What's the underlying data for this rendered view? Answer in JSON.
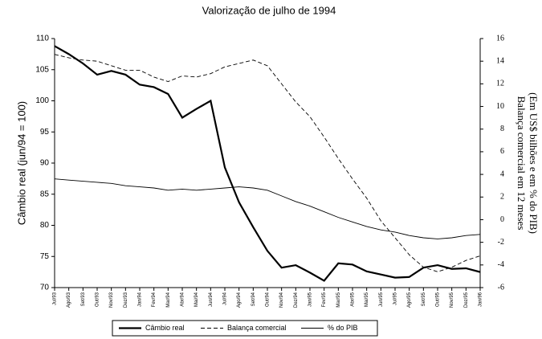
{
  "chart_data": {
    "type": "line",
    "title": "Valorização de julho de 1994",
    "ylabel": "Câmbio real (jun/94 = 100)",
    "y2label": [
      "Balança comercial em 12 meses",
      "(Em US$ bilhões e em % do PIB)"
    ],
    "categories": [
      "Jul/93",
      "Ago/93",
      "Set/93",
      "Out/93",
      "Nov/93",
      "Dez/93",
      "Jan/94",
      "Fev/94",
      "Mar/94",
      "Abr/94",
      "Mai/94",
      "Jun/94",
      "Jul/94",
      "Ago/94",
      "Set/94",
      "Out/94",
      "Nov/94",
      "Dez/94",
      "Jan/95",
      "Fev/95",
      "Mar/95",
      "Abr/95",
      "Mai/95",
      "Jun/95",
      "Jul/95",
      "Ago/95",
      "Set/95",
      "Out/95",
      "Nov/95",
      "Dez/95",
      "Jan/96"
    ],
    "ylim": [
      70,
      110
    ],
    "yticks": [
      70,
      75,
      80,
      85,
      90,
      95,
      100,
      105,
      110
    ],
    "y2lim": [
      -6,
      16
    ],
    "y2ticks": [
      -6,
      -4,
      -2,
      0,
      2,
      4,
      6,
      8,
      10,
      12,
      14,
      16
    ],
    "grid": false,
    "legend": "bottom",
    "series": [
      {
        "name": "Câmbio real",
        "color": "#000000",
        "line_style": "thick",
        "axis": "y",
        "values": [
          108.8,
          107.5,
          106,
          104.2,
          104.8,
          104.2,
          102.6,
          102.2,
          101.1,
          97.3,
          98.7,
          100,
          89.3,
          83.7,
          79.7,
          75.9,
          73.2,
          73.6,
          72.4,
          71.1,
          73.9,
          73.7,
          72.6,
          72.1,
          71.6,
          71.7,
          73.2,
          73.6,
          73,
          73.1,
          72.5
        ]
      },
      {
        "name": "Balança comercial",
        "color": "#000000",
        "line_style": "dashed",
        "axis": "y2",
        "values": [
          14.6,
          14.3,
          14.1,
          14.0,
          13.6,
          13.2,
          13.2,
          12.6,
          12.2,
          12.7,
          12.6,
          12.9,
          13.5,
          13.8,
          14.1,
          13.6,
          12.0,
          10.4,
          9.1,
          7.3,
          5.4,
          3.6,
          1.9,
          -0.1,
          -1.6,
          -3.1,
          -4.2,
          -4.6,
          -4.2,
          -3.6,
          -3.2
        ]
      },
      {
        "name": "% do PIB",
        "color": "#000000",
        "line_style": "thin",
        "axis": "y2",
        "values": [
          3.6,
          3.5,
          3.4,
          3.3,
          3.2,
          3.0,
          2.9,
          2.8,
          2.6,
          2.7,
          2.6,
          2.7,
          2.8,
          2.9,
          2.8,
          2.6,
          2.1,
          1.6,
          1.2,
          0.7,
          0.2,
          -0.2,
          -0.6,
          -0.9,
          -1.1,
          -1.4,
          -1.6,
          -1.7,
          -1.6,
          -1.4,
          -1.3
        ]
      }
    ]
  }
}
